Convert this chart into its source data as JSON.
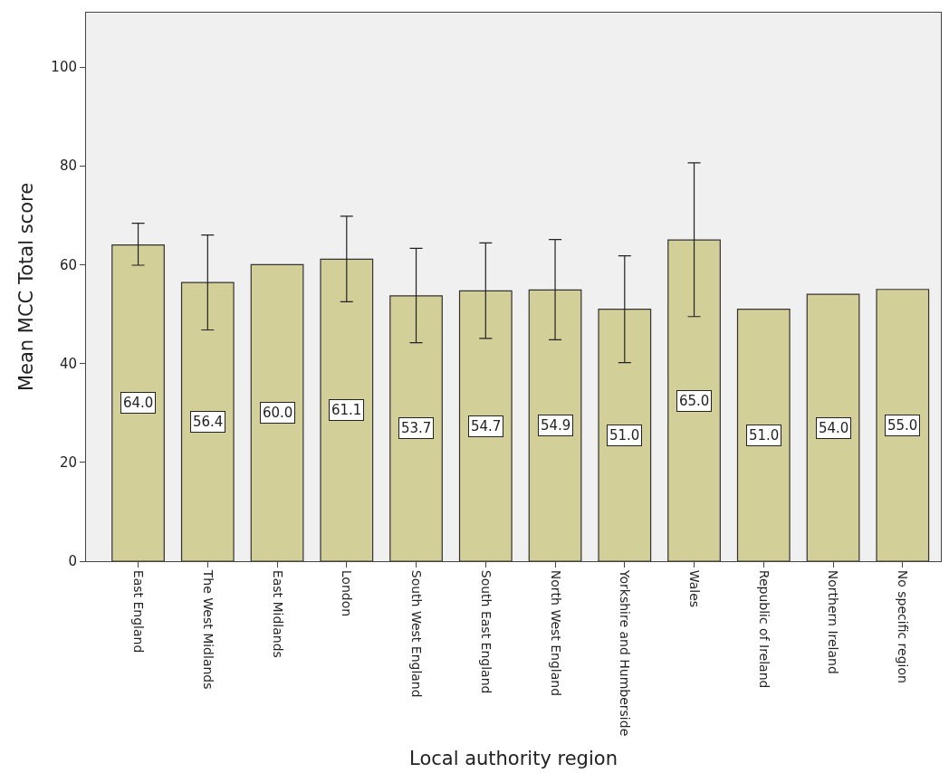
{
  "chart_data": {
    "type": "bar",
    "xlabel": "Local authority region",
    "ylabel": "Mean MCC Total score",
    "categories": [
      "East England",
      "The West Midlands",
      "East Midlands",
      "London",
      "South West England",
      "South East England",
      "North West England",
      "Yorkshire and Humberside",
      "Wales",
      "Republic of Ireland",
      "Northern Ireland",
      "No specific region"
    ],
    "values": [
      64.0,
      56.4,
      60.0,
      61.1,
      53.7,
      54.7,
      54.9,
      51.0,
      65.0,
      51.0,
      54.0,
      55.0
    ],
    "errors": [
      [
        59.9,
        68.4
      ],
      [
        46.8,
        66.0
      ],
      null,
      [
        52.5,
        69.8
      ],
      [
        44.2,
        63.3
      ],
      [
        45.1,
        64.4
      ],
      [
        44.8,
        65.1
      ],
      [
        40.2,
        61.8
      ],
      [
        49.5,
        80.6
      ],
      null,
      null,
      null
    ],
    "value_labels": [
      "64.0",
      "56.4",
      "60.0",
      "61.1",
      "53.7",
      "54.7",
      "54.9",
      "51.0",
      "65.0",
      "51.0",
      "54.0",
      "55.0"
    ],
    "color": "#d3cf98",
    "grid": false,
    "ylim": [
      0,
      111
    ],
    "yticks": [
      0,
      20,
      40,
      60,
      80,
      100
    ]
  }
}
